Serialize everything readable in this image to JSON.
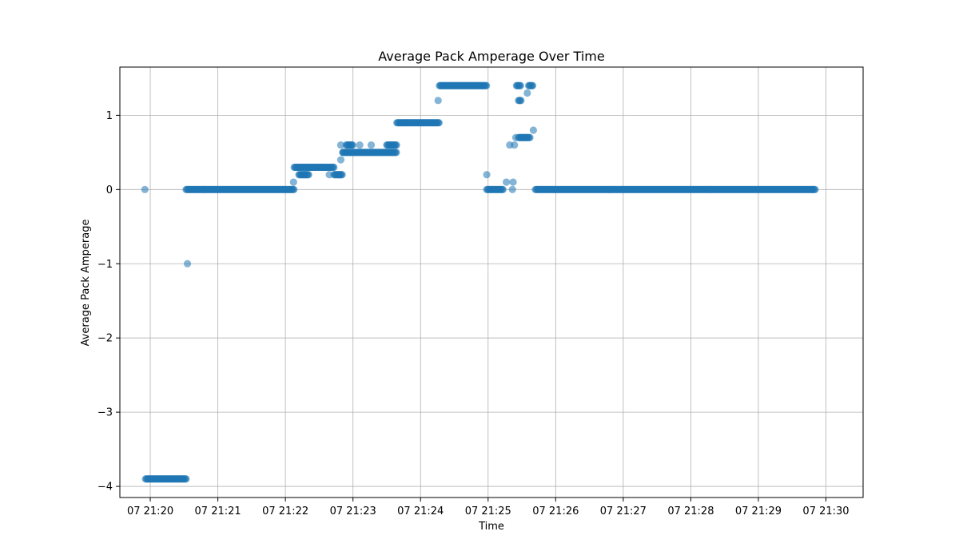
{
  "chart_data": {
    "type": "scatter",
    "title": "Average Pack Amperage Over Time",
    "xlabel": "Time",
    "ylabel": "Average Pack Amperage",
    "grid": true,
    "color": "#1f77b4",
    "x_unit": "minutes past 21:00 on day 07",
    "xlim": [
      19.55,
      30.55
    ],
    "ylim": [
      -4.15,
      1.65
    ],
    "xticks": [
      {
        "value": 20,
        "label": "07 21:20"
      },
      {
        "value": 21,
        "label": "07 21:21"
      },
      {
        "value": 22,
        "label": "07 21:22"
      },
      {
        "value": 23,
        "label": "07 21:23"
      },
      {
        "value": 24,
        "label": "07 21:24"
      },
      {
        "value": 25,
        "label": "07 21:25"
      },
      {
        "value": 26,
        "label": "07 21:26"
      },
      {
        "value": 27,
        "label": "07 21:27"
      },
      {
        "value": 28,
        "label": "07 21:28"
      },
      {
        "value": 29,
        "label": "07 21:29"
      },
      {
        "value": 30,
        "label": "07 21:30"
      }
    ],
    "yticks": [
      {
        "value": -4,
        "label": "−4"
      },
      {
        "value": -3,
        "label": "−3"
      },
      {
        "value": -2,
        "label": "−2"
      },
      {
        "value": -1,
        "label": "−1"
      },
      {
        "value": 0,
        "label": "0"
      },
      {
        "value": 1,
        "label": "1"
      }
    ],
    "single_points": [
      [
        19.92,
        0.0
      ],
      [
        20.55,
        -1.0
      ],
      [
        22.12,
        0.1
      ],
      [
        22.65,
        0.2
      ],
      [
        22.8,
        0.2
      ],
      [
        22.82,
        0.6
      ],
      [
        22.82,
        0.4
      ],
      [
        22.85,
        0.5
      ],
      [
        23.1,
        0.6
      ],
      [
        23.27,
        0.6
      ],
      [
        24.26,
        1.2
      ],
      [
        24.98,
        0.2
      ],
      [
        25.27,
        0.1
      ],
      [
        25.32,
        0.6
      ],
      [
        25.36,
        0.0
      ],
      [
        25.37,
        0.1
      ],
      [
        25.39,
        0.6
      ],
      [
        25.41,
        0.7
      ],
      [
        25.58,
        1.3
      ],
      [
        25.67,
        0.8
      ]
    ],
    "runs": [
      {
        "x_start": 19.93,
        "x_end": 20.53,
        "y": -3.9
      },
      {
        "x_start": 20.53,
        "x_end": 22.13,
        "y": 0.0
      },
      {
        "x_start": 22.13,
        "x_end": 22.55,
        "y": 0.3
      },
      {
        "x_start": 22.2,
        "x_end": 22.35,
        "y": 0.2
      },
      {
        "x_start": 22.55,
        "x_end": 22.72,
        "y": 0.3
      },
      {
        "x_start": 22.72,
        "x_end": 22.85,
        "y": 0.2
      },
      {
        "x_start": 22.9,
        "x_end": 23.0,
        "y": 0.6
      },
      {
        "x_start": 22.85,
        "x_end": 23.65,
        "y": 0.5
      },
      {
        "x_start": 23.5,
        "x_end": 23.65,
        "y": 0.6
      },
      {
        "x_start": 23.65,
        "x_end": 24.28,
        "y": 0.9
      },
      {
        "x_start": 24.28,
        "x_end": 24.98,
        "y": 1.4
      },
      {
        "x_start": 24.98,
        "x_end": 25.22,
        "y": 0.0
      },
      {
        "x_start": 25.42,
        "x_end": 25.48,
        "y": 1.4
      },
      {
        "x_start": 25.45,
        "x_end": 25.49,
        "y": 1.2
      },
      {
        "x_start": 25.45,
        "x_end": 25.62,
        "y": 0.7
      },
      {
        "x_start": 25.6,
        "x_end": 25.66,
        "y": 1.4
      },
      {
        "x_start": 25.7,
        "x_end": 29.85,
        "y": 0.0
      }
    ]
  }
}
